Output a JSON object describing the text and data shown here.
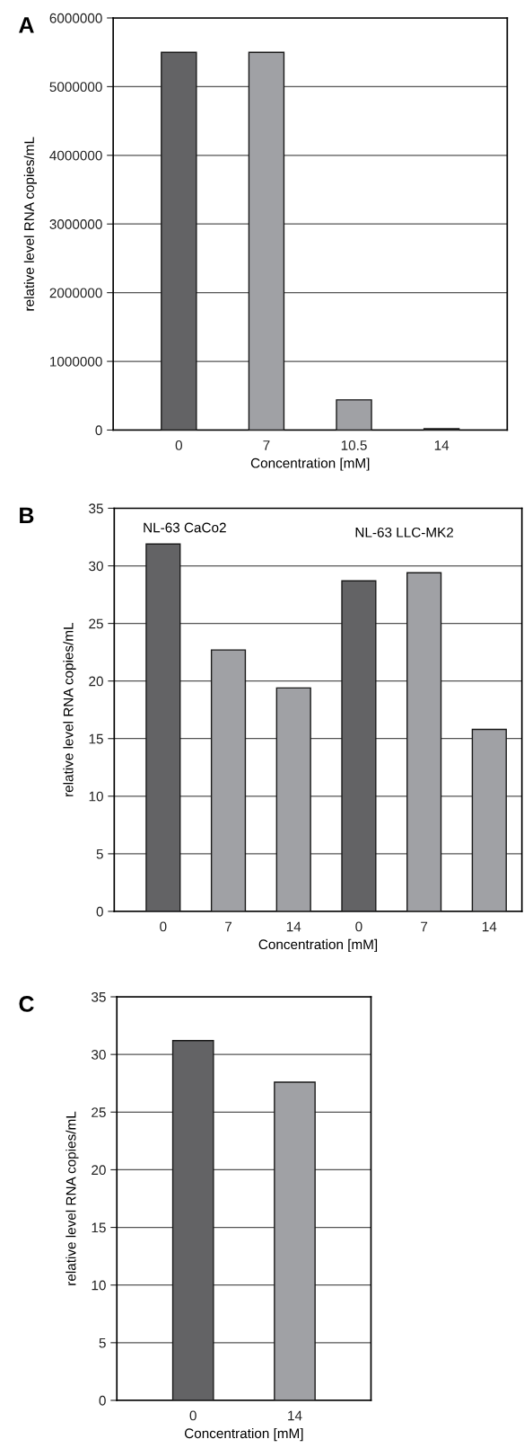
{
  "chart_data": [
    {
      "type": "bar",
      "title": "A",
      "xlabel": "Concentration [mM]",
      "ylabel": "relative level RNA copies/mL",
      "categories": [
        "0",
        "7",
        "10.5",
        "14"
      ],
      "values": [
        5500000,
        5500000,
        440000,
        20000
      ],
      "colors": [
        "#636365",
        "#a0a1a5",
        "#a0a1a5",
        "#a0a1a5"
      ],
      "ylim": [
        0,
        6000000
      ],
      "yticks": [
        0,
        1000000,
        2000000,
        3000000,
        4000000,
        5000000,
        6000000
      ],
      "grid": "y"
    },
    {
      "type": "bar",
      "title": "B",
      "xlabel": "Concentration [mM]",
      "ylabel": "relative level RNA copies/mL",
      "categories": [
        "0",
        "7",
        "14",
        "0",
        "7",
        "14"
      ],
      "values": [
        31.9,
        22.7,
        19.4,
        28.7,
        29.4,
        15.8
      ],
      "colors": [
        "#636365",
        "#a0a1a5",
        "#a0a1a5",
        "#636365",
        "#a0a1a5",
        "#a0a1a5"
      ],
      "ylim": [
        0,
        35
      ],
      "yticks": [
        0,
        5,
        10,
        15,
        20,
        25,
        30,
        35
      ],
      "grid": "y",
      "annotations": [
        "NL-63 CaCo2",
        "NL-63 LLC-MK2"
      ]
    },
    {
      "type": "bar",
      "title": "C",
      "xlabel": "Concentration [mM]",
      "ylabel": "relative level RNA copies/mL",
      "categories": [
        "0",
        "14"
      ],
      "values": [
        31.2,
        27.6
      ],
      "colors": [
        "#636365",
        "#a0a1a5"
      ],
      "ylim": [
        0,
        35
      ],
      "yticks": [
        0,
        5,
        10,
        15,
        20,
        25,
        30,
        35
      ],
      "grid": "y"
    }
  ]
}
